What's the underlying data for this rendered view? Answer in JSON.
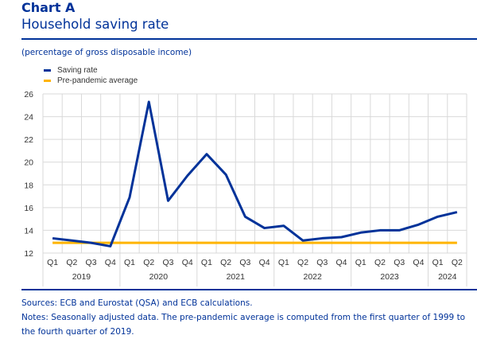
{
  "header": {
    "label": "Chart A",
    "title": "Household saving rate",
    "unit": "(percentage of gross disposable income)"
  },
  "colors": {
    "brand": "#003299",
    "saving_rate": "#003299",
    "pre_pandemic_average": "#FFB400",
    "grid": "#d9d9d9"
  },
  "chart_data": {
    "type": "line",
    "title": "Household saving rate",
    "ylabel": "percentage of gross disposable income",
    "xlabel": "",
    "ylim": [
      12,
      26
    ],
    "yticks": [
      12,
      14,
      16,
      18,
      20,
      22,
      24,
      26
    ],
    "grid": true,
    "legend_position": "top-left",
    "x": [
      "2019 Q1",
      "2019 Q2",
      "2019 Q3",
      "2019 Q4",
      "2020 Q1",
      "2020 Q2",
      "2020 Q3",
      "2020 Q4",
      "2021 Q1",
      "2021 Q2",
      "2021 Q3",
      "2021 Q4",
      "2022 Q1",
      "2022 Q2",
      "2022 Q3",
      "2022 Q4",
      "2023 Q1",
      "2023 Q2",
      "2023 Q3",
      "2023 Q4",
      "2024 Q1",
      "2024 Q2"
    ],
    "quarter_labels": [
      "Q1",
      "Q2",
      "Q3",
      "Q4",
      "Q1",
      "Q2",
      "Q3",
      "Q4",
      "Q1",
      "Q2",
      "Q3",
      "Q4",
      "Q1",
      "Q2",
      "Q3",
      "Q4",
      "Q1",
      "Q2",
      "Q3",
      "Q4",
      "Q1",
      "Q2"
    ],
    "year_groups": [
      {
        "label": "2019",
        "count": 4
      },
      {
        "label": "2020",
        "count": 4
      },
      {
        "label": "2021",
        "count": 4
      },
      {
        "label": "2022",
        "count": 4
      },
      {
        "label": "2023",
        "count": 4
      },
      {
        "label": "2024",
        "count": 2
      }
    ],
    "series": [
      {
        "name": "Saving rate",
        "color": "#003299",
        "values": [
          13.3,
          13.1,
          12.9,
          12.6,
          16.9,
          25.3,
          16.6,
          18.8,
          20.7,
          18.9,
          15.2,
          14.2,
          14.4,
          13.1,
          13.3,
          13.4,
          13.8,
          14.0,
          14.0,
          14.5,
          15.2,
          15.6
        ]
      },
      {
        "name": "Pre-pandemic average",
        "color": "#FFB400",
        "values": [
          12.9,
          12.9,
          12.9,
          12.9,
          12.9,
          12.9,
          12.9,
          12.9,
          12.9,
          12.9,
          12.9,
          12.9,
          12.9,
          12.9,
          12.9,
          12.9,
          12.9,
          12.9,
          12.9,
          12.9,
          12.9,
          12.9
        ]
      }
    ]
  },
  "footer": {
    "sources": "Sources: ECB and Eurostat (QSA) and ECB calculations.",
    "notes": "Notes: Seasonally adjusted data. The pre-pandemic average is computed from the first quarter of 1999 to the fourth quarter of 2019."
  }
}
